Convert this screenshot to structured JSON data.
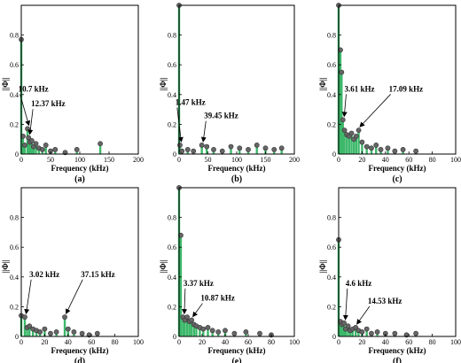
{
  "colors": {
    "stem": "#3db86a",
    "marker": "#666666",
    "axis": "#000000"
  },
  "chart_data": [
    {
      "type": "stem",
      "panel_label": "(a)",
      "xlabel": "Frequency (kHz)",
      "ylabel": "||Φ||",
      "xlim": [
        0,
        200
      ],
      "ylim": [
        0,
        1
      ],
      "x_ticks": [
        0,
        50,
        100,
        150,
        200
      ],
      "y_ticks": [
        0,
        0.2,
        0.4,
        0.6,
        0.8
      ],
      "x_tick_labels": [
        "0",
        "50",
        "100",
        "150",
        "200"
      ],
      "y_tick_labels": [
        "0",
        "0.2",
        "0.4",
        "0.6",
        "0.8"
      ],
      "points": [
        {
          "x": 0,
          "y": 0.77
        },
        {
          "x": 3,
          "y": 0.12
        },
        {
          "x": 6,
          "y": 0.06
        },
        {
          "x": 10.7,
          "y": 0.17
        },
        {
          "x": 12.37,
          "y": 0.11
        },
        {
          "x": 15,
          "y": 0.08
        },
        {
          "x": 18,
          "y": 0.09
        },
        {
          "x": 21,
          "y": 0.05
        },
        {
          "x": 25,
          "y": 0.07
        },
        {
          "x": 30,
          "y": 0.04
        },
        {
          "x": 36,
          "y": 0.03
        },
        {
          "x": 42,
          "y": 0.06
        },
        {
          "x": 50,
          "y": 0.02
        },
        {
          "x": 58,
          "y": 0.03
        },
        {
          "x": 75,
          "y": 0.01
        },
        {
          "x": 95,
          "y": 0.03
        },
        {
          "x": 135,
          "y": 0.07
        }
      ],
      "annotations": [
        {
          "text": "10.7 kHz",
          "x": 10.7,
          "y": 0.17,
          "label_x": 13,
          "label_y": 0.42
        },
        {
          "text": "12.37 kHz",
          "x": 12.37,
          "y": 0.11,
          "label_x": 35,
          "label_y": 0.32
        }
      ]
    },
    {
      "type": "stem",
      "panel_label": "(b)",
      "xlabel": "Frequency (kHz)",
      "ylabel": "||Φ||",
      "xlim": [
        0,
        200
      ],
      "ylim": [
        0,
        1
      ],
      "x_ticks": [
        0,
        50,
        100,
        150,
        200
      ],
      "y_ticks": [
        0,
        0.2,
        0.4,
        0.6,
        0.8
      ],
      "x_tick_labels": [
        "0",
        "50",
        "100",
        "150",
        "200"
      ],
      "y_tick_labels": [
        "0",
        "0.2",
        "0.4",
        "0.6",
        "0.8"
      ],
      "points": [
        {
          "x": 0,
          "y": 1.0
        },
        {
          "x": 1.47,
          "y": 0.06
        },
        {
          "x": 5,
          "y": 0.02
        },
        {
          "x": 15,
          "y": 0.03
        },
        {
          "x": 25,
          "y": 0.02
        },
        {
          "x": 39.45,
          "y": 0.06
        },
        {
          "x": 48,
          "y": 0.05
        },
        {
          "x": 60,
          "y": 0.03
        },
        {
          "x": 75,
          "y": 0.02
        },
        {
          "x": 90,
          "y": 0.05
        },
        {
          "x": 105,
          "y": 0.04
        },
        {
          "x": 120,
          "y": 0.03
        },
        {
          "x": 135,
          "y": 0.06
        },
        {
          "x": 150,
          "y": 0.04
        },
        {
          "x": 165,
          "y": 0.03
        },
        {
          "x": 178,
          "y": 0.04
        }
      ],
      "annotations": [
        {
          "text": "1.47 kHz",
          "x": 1.47,
          "y": 0.06,
          "label_x": 12,
          "label_y": 0.33
        },
        {
          "text": "39.45 kHz",
          "x": 39.45,
          "y": 0.06,
          "label_x": 62,
          "label_y": 0.24
        }
      ]
    },
    {
      "type": "stem",
      "panel_label": "(c)",
      "xlabel": "Frequency (kHz)",
      "ylabel": "||Φ||",
      "xlim": [
        0,
        100
      ],
      "ylim": [
        0,
        1
      ],
      "x_ticks": [
        0,
        20,
        40,
        60,
        80,
        100
      ],
      "y_ticks": [
        0,
        0.2,
        0.4,
        0.6,
        0.8
      ],
      "x_tick_labels": [
        "0",
        "20",
        "40",
        "60",
        "80",
        "100"
      ],
      "y_tick_labels": [
        "0",
        "0.2",
        "0.4",
        "0.6",
        "0.8"
      ],
      "points": [
        {
          "x": 0,
          "y": 1.0
        },
        {
          "x": 1.5,
          "y": 0.7
        },
        {
          "x": 2.5,
          "y": 0.55
        },
        {
          "x": 3.61,
          "y": 0.23
        },
        {
          "x": 5,
          "y": 0.16
        },
        {
          "x": 7,
          "y": 0.13
        },
        {
          "x": 9,
          "y": 0.12
        },
        {
          "x": 11,
          "y": 0.14
        },
        {
          "x": 13,
          "y": 0.1
        },
        {
          "x": 15,
          "y": 0.12
        },
        {
          "x": 17.09,
          "y": 0.16
        },
        {
          "x": 20,
          "y": 0.08
        },
        {
          "x": 24,
          "y": 0.05
        },
        {
          "x": 28,
          "y": 0.04
        },
        {
          "x": 32,
          "y": 0.06
        },
        {
          "x": 36,
          "y": 0.03
        },
        {
          "x": 42,
          "y": 0.04
        },
        {
          "x": 48,
          "y": 0.02
        },
        {
          "x": 55,
          "y": 0.03
        },
        {
          "x": 66,
          "y": 0.02
        }
      ],
      "annotations": [
        {
          "text": "3.61 kHz",
          "x": 3.61,
          "y": 0.23,
          "label_x": 14,
          "label_y": 0.42
        },
        {
          "text": "17.09 kHz",
          "x": 17.09,
          "y": 0.16,
          "label_x": 52,
          "label_y": 0.42
        }
      ]
    },
    {
      "type": "stem",
      "panel_label": "(d)",
      "xlabel": "Frequency (kHz)",
      "ylabel": "||Φ||",
      "xlim": [
        0,
        100
      ],
      "ylim": [
        0,
        1
      ],
      "x_ticks": [
        0,
        20,
        40,
        60,
        80,
        100
      ],
      "y_ticks": [
        0,
        0.2,
        0.4,
        0.6,
        0.8
      ],
      "x_tick_labels": [
        "0",
        "20",
        "40",
        "60",
        "80",
        "100"
      ],
      "y_tick_labels": [
        "0",
        "0.2",
        "0.4",
        "0.6",
        "0.8"
      ],
      "points": [
        {
          "x": 0,
          "y": 0.14
        },
        {
          "x": 3.02,
          "y": 0.13
        },
        {
          "x": 5,
          "y": 0.06
        },
        {
          "x": 7,
          "y": 0.07
        },
        {
          "x": 10,
          "y": 0.05
        },
        {
          "x": 13,
          "y": 0.04
        },
        {
          "x": 16,
          "y": 0.03
        },
        {
          "x": 20,
          "y": 0.05
        },
        {
          "x": 25,
          "y": 0.02
        },
        {
          "x": 30,
          "y": 0.03
        },
        {
          "x": 37.15,
          "y": 0.13
        },
        {
          "x": 40,
          "y": 0.05
        },
        {
          "x": 45,
          "y": 0.03
        },
        {
          "x": 52,
          "y": 0.02
        },
        {
          "x": 58,
          "y": 0.01
        },
        {
          "x": 65,
          "y": 0.02
        }
      ],
      "annotations": [
        {
          "text": "3.02 kHz",
          "x": 3.02,
          "y": 0.13,
          "label_x": 16,
          "label_y": 0.4
        },
        {
          "text": "37.15 kHz",
          "x": 37.15,
          "y": 0.13,
          "label_x": 60,
          "label_y": 0.4
        }
      ]
    },
    {
      "type": "stem",
      "panel_label": "(e)",
      "xlabel": "Frequency (kHz)",
      "ylabel": "||Φ||",
      "xlim": [
        0,
        100
      ],
      "ylim": [
        0,
        1
      ],
      "x_ticks": [
        0,
        20,
        40,
        60,
        80,
        100
      ],
      "y_ticks": [
        0,
        0.2,
        0.4,
        0.6,
        0.8
      ],
      "x_tick_labels": [
        "0",
        "20",
        "40",
        "60",
        "80",
        "100"
      ],
      "y_tick_labels": [
        "0",
        "0.2",
        "0.4",
        "0.6",
        "0.8"
      ],
      "points": [
        {
          "x": 0,
          "y": 1.0
        },
        {
          "x": 1.5,
          "y": 0.68
        },
        {
          "x": 3.37,
          "y": 0.13
        },
        {
          "x": 5,
          "y": 0.11
        },
        {
          "x": 7,
          "y": 0.13
        },
        {
          "x": 9,
          "y": 0.1
        },
        {
          "x": 10.87,
          "y": 0.11
        },
        {
          "x": 13,
          "y": 0.08
        },
        {
          "x": 15,
          "y": 0.07
        },
        {
          "x": 18,
          "y": 0.06
        },
        {
          "x": 21,
          "y": 0.05
        },
        {
          "x": 25,
          "y": 0.06
        },
        {
          "x": 29,
          "y": 0.04
        },
        {
          "x": 34,
          "y": 0.03
        },
        {
          "x": 40,
          "y": 0.04
        },
        {
          "x": 48,
          "y": 0.02
        },
        {
          "x": 58,
          "y": 0.03
        },
        {
          "x": 70,
          "y": 0.02
        },
        {
          "x": 80,
          "y": 0.01
        }
      ],
      "annotations": [
        {
          "text": "3.37 kHz",
          "x": 3.37,
          "y": 0.13,
          "label_x": 13,
          "label_y": 0.34
        },
        {
          "text": "10.87 kHz",
          "x": 10.87,
          "y": 0.11,
          "label_x": 28,
          "label_y": 0.24
        }
      ]
    },
    {
      "type": "stem",
      "panel_label": "(f)",
      "xlabel": "Frequency (kHz)",
      "ylabel": "||Φ||",
      "xlim": [
        0,
        100
      ],
      "ylim": [
        0,
        1
      ],
      "x_ticks": [
        0,
        20,
        40,
        60,
        80,
        100
      ],
      "y_ticks": [
        0,
        0.2,
        0.4,
        0.6,
        0.8
      ],
      "x_tick_labels": [
        "0",
        "20",
        "40",
        "60",
        "80",
        "100"
      ],
      "y_tick_labels": [
        "0",
        "0.2",
        "0.4",
        "0.6",
        "0.8"
      ],
      "points": [
        {
          "x": 0,
          "y": 0.65
        },
        {
          "x": 1.5,
          "y": 0.1
        },
        {
          "x": 3,
          "y": 0.08
        },
        {
          "x": 4.6,
          "y": 0.09
        },
        {
          "x": 6,
          "y": 0.05
        },
        {
          "x": 8,
          "y": 0.07
        },
        {
          "x": 10,
          "y": 0.04
        },
        {
          "x": 12,
          "y": 0.05
        },
        {
          "x": 14.53,
          "y": 0.06
        },
        {
          "x": 17,
          "y": 0.04
        },
        {
          "x": 20,
          "y": 0.03
        },
        {
          "x": 24,
          "y": 0.05
        },
        {
          "x": 28,
          "y": 0.02
        },
        {
          "x": 33,
          "y": 0.03
        },
        {
          "x": 40,
          "y": 0.02
        },
        {
          "x": 48,
          "y": 0.02
        },
        {
          "x": 58,
          "y": 0.01
        },
        {
          "x": 66,
          "y": 0.02
        }
      ],
      "annotations": [
        {
          "text": "4.6 kHz",
          "x": 4.6,
          "y": 0.09,
          "label_x": 15,
          "label_y": 0.34
        },
        {
          "text": "14.53 kHz",
          "x": 14.53,
          "y": 0.06,
          "label_x": 34,
          "label_y": 0.22
        }
      ]
    }
  ]
}
